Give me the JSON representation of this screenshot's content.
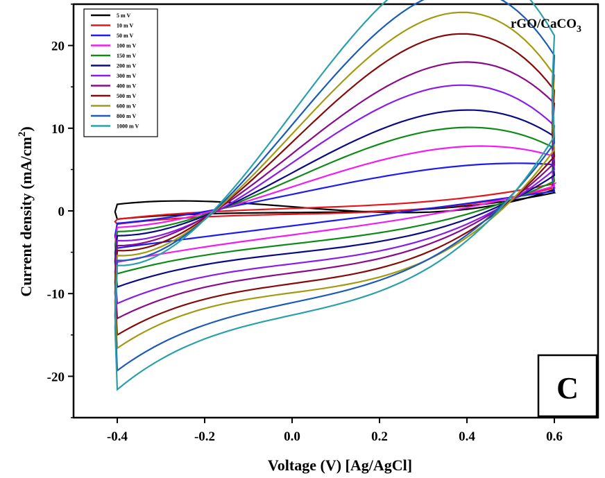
{
  "chart_data": {
    "type": "line",
    "title": "",
    "sample_label": {
      "main": "rGO/CaCO",
      "subscript": "3"
    },
    "panel_label": "C",
    "xlabel": "Voltage (V) [Ag/AgCl]",
    "ylabel": {
      "main": "Current density (mA/cm",
      "superscript": "2",
      "close": ")"
    },
    "xlim": [
      -0.5,
      0.7
    ],
    "ylim": [
      -25,
      25
    ],
    "x_ticks": [
      {
        "value": -0.4,
        "label": "-0.4"
      },
      {
        "value": -0.2,
        "label": "-0.2"
      },
      {
        "value": 0.0,
        "label": "0.0"
      },
      {
        "value": 0.2,
        "label": "0.2"
      },
      {
        "value": 0.4,
        "label": "0.4"
      },
      {
        "value": 0.6,
        "label": "0.6"
      }
    ],
    "y_ticks": [
      {
        "value": -20,
        "label": "-20"
      },
      {
        "value": -10,
        "label": "-10"
      },
      {
        "value": 0,
        "label": "0"
      },
      {
        "value": 10,
        "label": "10"
      },
      {
        "value": 20,
        "label": "20"
      }
    ],
    "grid": false,
    "legend_position": "top-left",
    "series": [
      {
        "name": "5 mV",
        "color": "#000000",
        "anodic_at_-0.4": 0.8,
        "anodic_at_0.6": 2.6,
        "cathodic_at_-0.4": -1.0,
        "cathodic_at_0.6": 2.2,
        "anodic_at_0": 0.5,
        "cathodic_at_0": -0.2
      },
      {
        "name": "10 mV",
        "color": "#e8141c",
        "anodic_at_-0.4": -1.0,
        "anodic_at_0.6": 3.3,
        "cathodic_at_-0.4": -1.6,
        "cathodic_at_0.6": 2.8,
        "anodic_at_0": 0.3,
        "cathodic_at_0": -0.4
      },
      {
        "name": "50 mV",
        "color": "#1c1cf0",
        "anodic_at_-0.4": -1.5,
        "anodic_at_0.6": 5.6,
        "cathodic_at_-0.4": -4.5,
        "cathodic_at_0.6": 2.4,
        "anodic_at_0": 2.0,
        "cathodic_at_0": -1.8
      },
      {
        "name": "100 mV",
        "color": "#f21cf0",
        "anodic_at_-0.4": -2.0,
        "anodic_at_0.6": 6.6,
        "cathodic_at_-0.4": -6.2,
        "cathodic_at_0.6": 3.0,
        "anodic_at_0": 2.9,
        "cathodic_at_0": -2.9
      },
      {
        "name": "150 mV",
        "color": "#0f8a16",
        "anodic_at_-0.4": -2.5,
        "anodic_at_0.6": 7.6,
        "cathodic_at_-0.4": -7.6,
        "cathodic_at_0.6": 3.6,
        "anodic_at_0": 3.8,
        "cathodic_at_0": -4.0
      },
      {
        "name": "200 mV",
        "color": "#0a0a85",
        "anodic_at_-0.4": -3.0,
        "anodic_at_0.6": 9.0,
        "cathodic_at_-0.4": -9.2,
        "cathodic_at_0.6": 4.3,
        "anodic_at_0": 4.6,
        "cathodic_at_0": -5.1
      },
      {
        "name": "300 mV",
        "color": "#8a1ce8",
        "anodic_at_-0.4": -3.6,
        "anodic_at_0.6": 10.3,
        "cathodic_at_-0.4": -11.2,
        "cathodic_at_0.6": 5.0,
        "anodic_at_0": 5.8,
        "cathodic_at_0": -6.4
      },
      {
        "name": "400 mV",
        "color": "#8a0a8a",
        "anodic_at_-0.4": -4.2,
        "anodic_at_0.6": 13.0,
        "cathodic_at_-0.4": -13.0,
        "cathodic_at_0.6": 5.8,
        "anodic_at_0": 6.9,
        "cathodic_at_0": -7.5
      },
      {
        "name": "500 mV",
        "color": "#850a0a",
        "anodic_at_-0.4": -4.8,
        "anodic_at_0.6": 14.6,
        "cathodic_at_-0.4": -15.0,
        "cathodic_at_0.6": 6.6,
        "anodic_at_0": 8.3,
        "cathodic_at_0": -8.8
      },
      {
        "name": "600 mV",
        "color": "#a39a12",
        "anodic_at_-0.4": -5.4,
        "anodic_at_0.6": 16.4,
        "cathodic_at_-0.4": -16.6,
        "cathodic_at_0.6": 7.4,
        "anodic_at_0": 9.3,
        "cathodic_at_0": -9.9
      },
      {
        "name": "800 mV",
        "color": "#1a5ab8",
        "anodic_at_-0.4": -6.0,
        "anodic_at_0.6": 18.8,
        "cathodic_at_-0.4": -19.3,
        "cathodic_at_0.6": 8.2,
        "anodic_at_0": 10.4,
        "cathodic_at_0": -11.1
      },
      {
        "name": "1000 mV",
        "color": "#2aa0a8",
        "anodic_at_-0.4": -6.6,
        "anodic_at_0.6": 21.2,
        "cathodic_at_-0.4": -21.6,
        "cathodic_at_0.6": 9.0,
        "anodic_at_0": 11.8,
        "cathodic_at_0": -12.6
      }
    ]
  },
  "legend": {
    "labels": [
      "5 m V",
      "10 m V",
      "50 m V",
      "100 m V",
      "150 m V",
      "200 m V",
      "300 m V",
      "400 m V",
      "500 m V",
      "600 m V",
      "800 m V",
      "1000 m V"
    ]
  }
}
